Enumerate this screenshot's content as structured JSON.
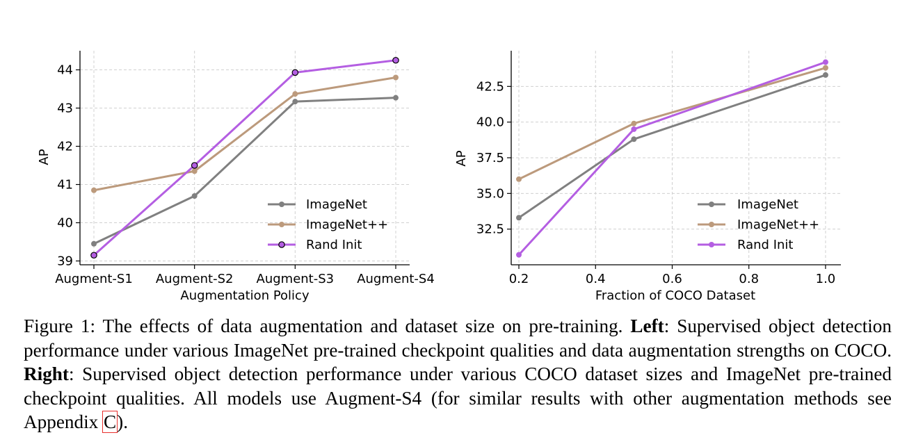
{
  "figure": {
    "colors": {
      "ImageNet": "#808080",
      "ImageNet++": "#bc9a7c",
      "Rand Init": "#b45ee2"
    },
    "charts": [
      {
        "ylabel": "AP",
        "xlabel": "Augmentation Policy",
        "legend": [
          "ImageNet",
          "ImageNet++",
          "Rand Init"
        ]
      },
      {
        "ylabel": "AP",
        "xlabel": "Fraction of COCO Dataset",
        "legend": [
          "ImageNet",
          "ImageNet++",
          "Rand Init"
        ]
      }
    ]
  },
  "chart_data": [
    {
      "type": "line",
      "categories": [
        "Augment-S1",
        "Augment-S2",
        "Augment-S3",
        "Augment-S4"
      ],
      "xlabel": "Augmentation Policy",
      "ylabel": "AP",
      "ylim": [
        38.9,
        44.5
      ],
      "yticks": [
        39,
        40,
        41,
        42,
        43,
        44
      ],
      "grid": true,
      "legend_position": "lower-right",
      "series": [
        {
          "name": "ImageNet",
          "values": [
            39.45,
            40.7,
            43.17,
            43.27
          ],
          "color": "#808080"
        },
        {
          "name": "ImageNet++",
          "values": [
            40.85,
            41.35,
            43.37,
            43.8
          ],
          "color": "#bc9a7c"
        },
        {
          "name": "Rand Init",
          "values": [
            39.15,
            41.5,
            43.93,
            44.25
          ],
          "color": "#b45ee2",
          "marker_edge": "#000000"
        }
      ]
    },
    {
      "type": "line",
      "x": [
        0.2,
        0.5,
        1.0
      ],
      "xlabel": "Fraction of COCO Dataset",
      "ylabel": "AP",
      "xlim": [
        0.18,
        1.04
      ],
      "ylim": [
        30.0,
        45.0
      ],
      "xticks": [
        "0.2",
        "0.4",
        "0.6",
        "0.8",
        "1.0"
      ],
      "yticks": [
        "32.5",
        "35.0",
        "37.5",
        "40.0",
        "42.5"
      ],
      "grid": true,
      "legend_position": "lower-right",
      "series": [
        {
          "name": "ImageNet",
          "values": [
            33.3,
            38.8,
            43.3
          ],
          "color": "#808080"
        },
        {
          "name": "ImageNet++",
          "values": [
            36.0,
            39.9,
            43.8
          ],
          "color": "#bc9a7c"
        },
        {
          "name": "Rand Init",
          "values": [
            30.7,
            39.5,
            44.2
          ],
          "color": "#b45ee2"
        }
      ]
    }
  ],
  "caption": {
    "prefix": "Figure 1:  The effects of data augmentation and dataset size on pre-training. ",
    "left_label": "Left",
    "left_text": ":  Supervised object detection performance under various ImageNet pre-trained checkpoint qualities and data augmentation strengths on COCO. ",
    "right_label": "Right",
    "right_text": ": Supervised object detection performance under various COCO dataset sizes and ImageNet pre-trained checkpoint qualities. All models use Augment-S4 (for similar results with other augmentation methods see Appendix ",
    "appendix_ref": "C",
    "suffix": ")."
  }
}
